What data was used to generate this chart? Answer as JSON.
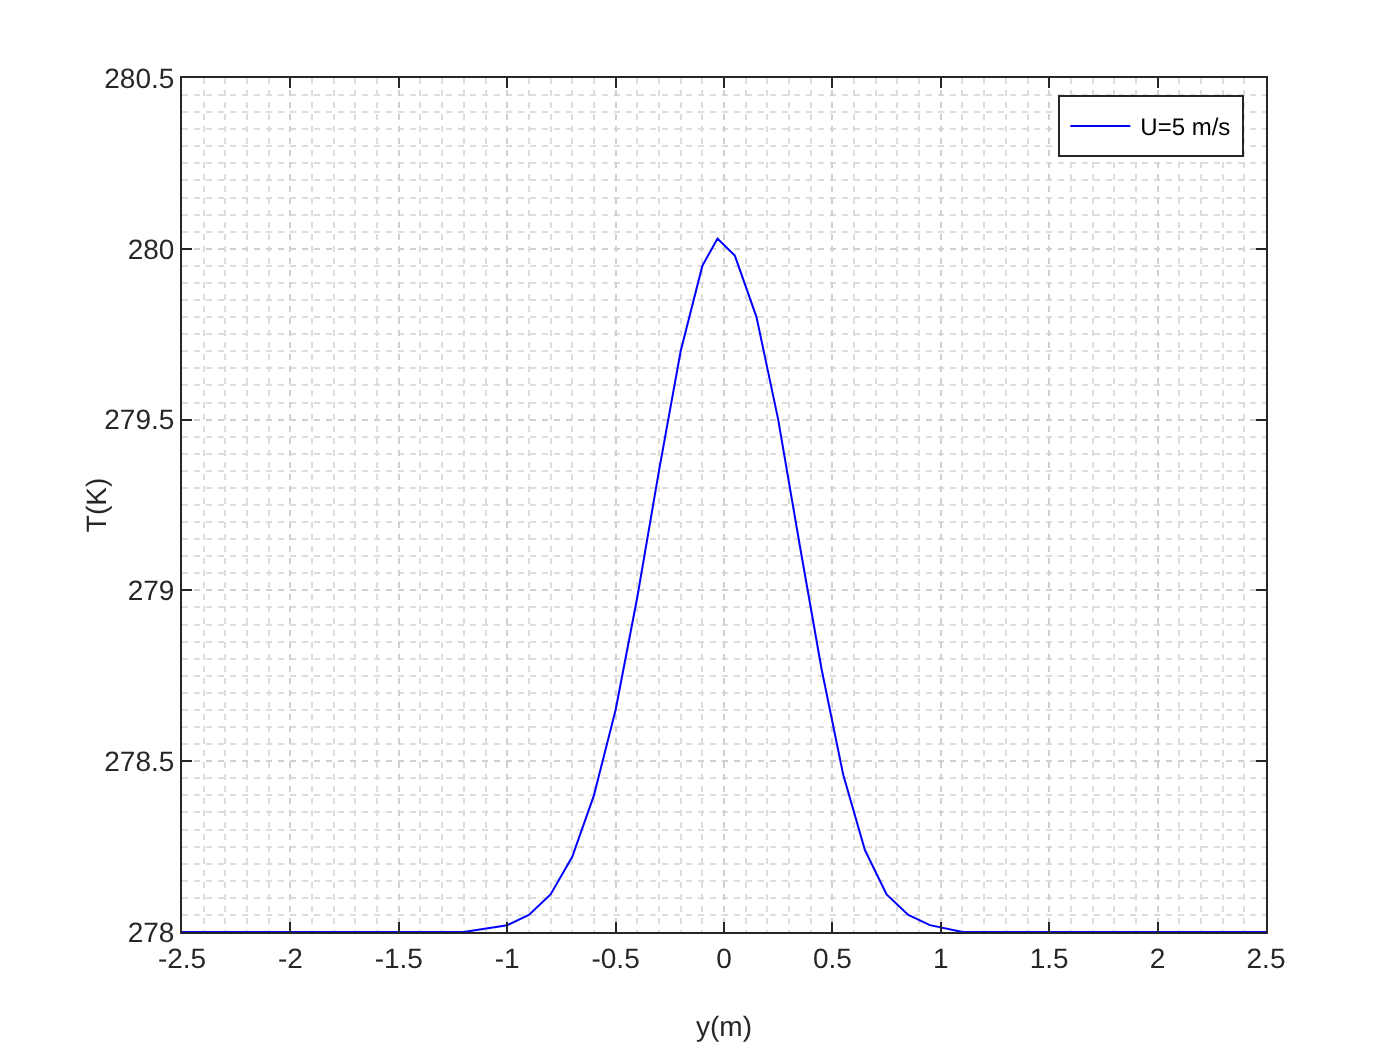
{
  "chart_data": {
    "type": "line",
    "xlabel": "y(m)",
    "ylabel": "T(K)",
    "x": [
      -2.5,
      -1.5,
      -1.2,
      -1.0,
      -0.9,
      -0.8,
      -0.7,
      -0.6,
      -0.5,
      -0.4,
      -0.3,
      -0.2,
      -0.1,
      -0.03,
      0.05,
      0.15,
      0.25,
      0.35,
      0.45,
      0.55,
      0.65,
      0.75,
      0.85,
      0.95,
      1.1,
      1.5,
      2.5
    ],
    "series": [
      {
        "name": "U=5 m/s",
        "color": "#0000ff",
        "values": [
          278,
          278,
          278,
          278.02,
          278.05,
          278.11,
          278.22,
          278.4,
          278.65,
          278.98,
          279.35,
          279.7,
          279.95,
          280.03,
          279.98,
          279.8,
          279.5,
          279.13,
          278.77,
          278.46,
          278.24,
          278.11,
          278.05,
          278.02,
          278,
          278,
          278
        ]
      }
    ],
    "xlim": [
      -2.5,
      2.5
    ],
    "xticks": [
      -2.5,
      -2,
      -1.5,
      -1,
      -0.5,
      0,
      0.5,
      1,
      1.5,
      2,
      2.5
    ],
    "ylim": [
      278,
      280.5
    ],
    "yticks": [
      278,
      278.5,
      279,
      279.5,
      280,
      280.5
    ],
    "grid": true,
    "legend": "top right",
    "marker": "none",
    "line_style": "solid"
  }
}
